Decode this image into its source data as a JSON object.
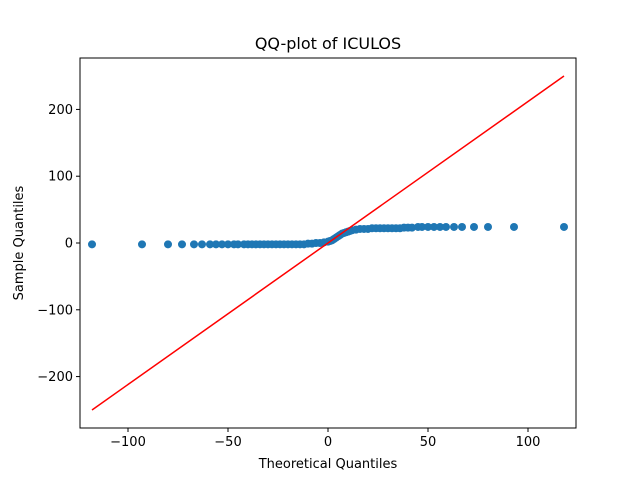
{
  "chart_data": {
    "type": "scatter",
    "title": "QQ-plot of ICULOS",
    "xlabel": "Theoretical Quantiles",
    "ylabel": "Sample Quantiles",
    "xlim": [
      -124,
      124
    ],
    "ylim": [
      -277,
      277
    ],
    "xticks": [
      {
        "value": -100,
        "label": "−100"
      },
      {
        "value": -50,
        "label": "−50"
      },
      {
        "value": 0,
        "label": "0"
      },
      {
        "value": 50,
        "label": "50"
      },
      {
        "value": 100,
        "label": "100"
      }
    ],
    "yticks": [
      {
        "value": -200,
        "label": "−200"
      },
      {
        "value": -100,
        "label": "−100"
      },
      {
        "value": 0,
        "label": "0"
      },
      {
        "value": 100,
        "label": "100"
      },
      {
        "value": 200,
        "label": "200"
      }
    ],
    "grid": false,
    "points_color": "#1f77b4",
    "line_color": "#ff0000",
    "reference_line": {
      "x": [
        -118,
        118
      ],
      "y": [
        -250,
        250
      ]
    },
    "series": [
      {
        "x": [
          -118,
          -93,
          -80,
          -73,
          -67,
          -63,
          -59,
          -56,
          -53,
          -50,
          -47,
          -45,
          -42,
          -40,
          -38,
          -36,
          -34,
          -32,
          -30,
          -28,
          -26,
          -24,
          -22,
          -20,
          -18,
          -16,
          -14,
          -12,
          -10,
          -8,
          -6,
          -4,
          -2,
          0,
          1,
          2,
          3,
          4,
          5,
          6,
          7,
          8,
          9,
          10,
          11,
          12,
          14,
          16,
          18,
          20,
          22,
          24,
          26,
          28,
          30,
          32,
          34,
          36,
          38,
          40,
          42,
          45,
          47,
          50,
          53,
          56,
          59,
          63,
          67,
          73,
          80,
          93,
          118
        ],
        "y": [
          -2,
          -2,
          -2,
          -2,
          -2,
          -2,
          -2,
          -2,
          -2,
          -2,
          -2,
          -2,
          -2,
          -2,
          -2,
          -2,
          -2,
          -2,
          -2,
          -2,
          -2,
          -2,
          -2,
          -2,
          -2,
          -2,
          -2,
          -2,
          -1,
          -1,
          0,
          0,
          1,
          2,
          3,
          4,
          6,
          8,
          10,
          12,
          14,
          15,
          16,
          17,
          18,
          19,
          20,
          21,
          21,
          21,
          22,
          22,
          22,
          22,
          22,
          22,
          22,
          22,
          23,
          23,
          23,
          24,
          24,
          24,
          24,
          24,
          24,
          24,
          24,
          24,
          24,
          24,
          24
        ]
      }
    ]
  }
}
